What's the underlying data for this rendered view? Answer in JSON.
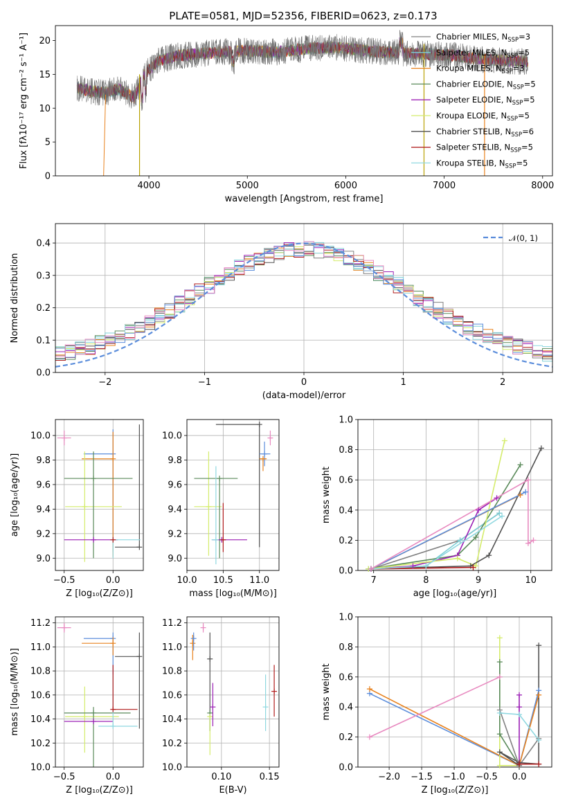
{
  "colors": {
    "Chabrier MILES": "#808080",
    "Salpeter MILES": "#7dcfd6",
    "Kroupa MILES": "#e8821e",
    "Chabrier ELODIE": "#5a8a5a",
    "Salpeter ELODIE": "#9b1fb5",
    "Kroupa ELODIE": "#d4ec6a",
    "Chabrier STELIB": "#505050",
    "Salpeter STELIB": "#b01a1a",
    "Kroupa STELIB": "#8fd8e0",
    "extra_blue": "#5b8ddb",
    "extra_pink": "#e88ac0",
    "normal_curve": "#5b8ddb",
    "grid": "#b0b0b0"
  },
  "figure_title": "PLATE=0581, MJD=52356, FIBERID=0623, z=0.173",
  "chart_data": [
    {
      "id": "spectrum",
      "type": "line",
      "xlabel": "wavelength [Angstrom, rest frame]",
      "ylabel": "Flux [fλ10⁻¹⁷ erg cm⁻² s⁻¹ A⁻¹]",
      "xlim": [
        3050,
        8100
      ],
      "ylim": [
        0,
        22.2
      ],
      "xticks": [
        4000,
        5000,
        6000,
        7000,
        8000
      ],
      "yticks": [
        0,
        5,
        10,
        15,
        20
      ],
      "grid": false,
      "legend_position": "right",
      "continuum_x": [
        3270,
        3400,
        3550,
        3700,
        3850,
        3950,
        4100,
        4300,
        4500,
        4700,
        5000,
        5300,
        5600,
        5900,
        6200,
        6500,
        6800,
        7100,
        7400,
        7700,
        7850
      ],
      "continuum_y": [
        13.0,
        12.5,
        12.3,
        12.8,
        11.5,
        15.0,
        17.0,
        17.8,
        18.0,
        18.3,
        18.5,
        18.3,
        18.8,
        19.0,
        18.5,
        18.2,
        18.0,
        17.8,
        17.2,
        17.0,
        16.8
      ],
      "series": [
        {
          "name": "Chabrier MILES",
          "label_suffix": "=3"
        },
        {
          "name": "Salpeter MILES",
          "label_suffix": "=5"
        },
        {
          "name": "Kroupa MILES",
          "label_suffix": "=3"
        },
        {
          "name": "Chabrier ELODIE",
          "label_suffix": "=5"
        },
        {
          "name": "Salpeter ELODIE",
          "label_suffix": "=5"
        },
        {
          "name": "Kroupa ELODIE",
          "label_suffix": "=5"
        },
        {
          "name": "Chabrier STELIB",
          "label_suffix": "=6"
        },
        {
          "name": "Salpeter STELIB",
          "label_suffix": "=5"
        },
        {
          "name": "Kroupa STELIB",
          "label_suffix": "=5"
        }
      ],
      "legend_subscript": "SSP",
      "legend_prefix": "N"
    },
    {
      "id": "residual_hist",
      "type": "bar",
      "xlabel": "(data-model)/error",
      "ylabel": "Normed distribution",
      "xlim": [
        -2.5,
        2.5
      ],
      "ylim": [
        0,
        0.46
      ],
      "xticks": [
        -2,
        -1,
        0,
        1,
        2
      ],
      "xticklabels": [
        "−2",
        "−1",
        "0",
        "1",
        "2"
      ],
      "yticks": [
        0.0,
        0.1,
        0.2,
        0.3,
        0.4
      ],
      "yticklabels": [
        "0.0",
        "0.1",
        "0.2",
        "0.3",
        "0.4"
      ],
      "grid": true,
      "bin_width": 0.1,
      "curve_label": "𝒩(0, 1)",
      "legend_position": "top-right"
    },
    {
      "id": "age_vs_Z",
      "type": "scatter",
      "xlabel": "Z [log₁₀(Z/Z⊙)]",
      "ylabel": "age  [log₁₀(age/yr)]",
      "xlim": [
        -0.59,
        0.31
      ],
      "ylim": [
        8.9,
        10.13
      ],
      "xticks": [
        -0.5,
        0.0
      ],
      "xticklabels": [
        "−0.5",
        "0.0"
      ],
      "yticks": [
        9.0,
        9.2,
        9.4,
        9.6,
        9.8,
        10.0
      ],
      "yticklabels": [
        "9.0",
        "9.2",
        "9.4",
        "9.6",
        "9.8",
        "10.0"
      ],
      "grid": true
    },
    {
      "id": "age_vs_mass",
      "type": "scatter",
      "xlabel": "mass [log₁₀(M/M⊙)]",
      "xlim": [
        10.0,
        11.27
      ],
      "ylim": [
        8.9,
        10.13
      ],
      "xticks": [
        10.0,
        10.5,
        11.0
      ],
      "xticklabels": [
        "10.0",
        "10.5",
        "11.0"
      ],
      "yticks": [
        9.0,
        9.2,
        9.4,
        9.6,
        9.8,
        10.0
      ],
      "yticklabels": [
        "9.0",
        "9.2",
        "9.4",
        "9.6",
        "9.8",
        "10.0"
      ],
      "grid": true
    },
    {
      "id": "massweight_vs_age",
      "type": "line",
      "xlabel": "age  [log₁₀(age/yr)]",
      "ylabel": "mass weight",
      "xlim": [
        6.7,
        10.4
      ],
      "ylim": [
        0,
        1.0
      ],
      "xticks": [
        7,
        8,
        9,
        10
      ],
      "yticks": [
        0.0,
        0.2,
        0.4,
        0.6,
        0.8,
        1.0
      ],
      "yticklabels": [
        "0.0",
        "0.2",
        "0.4",
        "0.6",
        "0.8",
        "1.0"
      ],
      "grid": true,
      "series": [
        {
          "name": "Chabrier MILES",
          "x": [
            6.95,
            8.65,
            9.4
          ],
          "y": [
            0.01,
            0.2,
            0.38
          ]
        },
        {
          "name": "Salpeter MILES",
          "x": [
            6.95,
            8.0,
            8.65,
            9.4
          ],
          "y": [
            0.01,
            0.03,
            0.2,
            0.38
          ]
        },
        {
          "name": "Kroupa MILES",
          "x": [
            6.95,
            9.8
          ],
          "y": [
            0.01,
            0.5
          ]
        },
        {
          "name": "Chabrier ELODIE",
          "x": [
            6.9,
            8.6,
            8.95,
            9.8
          ],
          "y": [
            0.01,
            0.1,
            0.22,
            0.7
          ]
        },
        {
          "name": "Salpeter ELODIE",
          "x": [
            6.95,
            7.75,
            8.6,
            9.0,
            9.35
          ],
          "y": [
            0.01,
            0.03,
            0.1,
            0.4,
            0.48
          ]
        },
        {
          "name": "Kroupa ELODIE",
          "x": [
            6.9,
            8.6,
            8.95,
            9.5
          ],
          "y": [
            0.01,
            0.08,
            0.03,
            0.86
          ]
        },
        {
          "name": "Chabrier STELIB",
          "x": [
            6.95,
            8.85,
            9.2,
            10.2
          ],
          "y": [
            0.01,
            0.03,
            0.1,
            0.81
          ]
        },
        {
          "name": "Salpeter STELIB",
          "x": [
            6.95,
            8.9
          ],
          "y": [
            0.01,
            0.02
          ]
        },
        {
          "name": "Kroupa STELIB",
          "x": [
            6.95,
            8.0,
            9.45
          ],
          "y": [
            0.01,
            0.03,
            0.36
          ]
        },
        {
          "name": "extra_blue",
          "x": [
            6.95,
            9.9
          ],
          "y": [
            0.01,
            0.52
          ]
        },
        {
          "name": "extra_pink",
          "x": [
            6.95,
            9.95,
            9.95,
            10.05
          ],
          "y": [
            0.01,
            0.6,
            0.18,
            0.2
          ]
        }
      ]
    },
    {
      "id": "mass_vs_Z",
      "type": "scatter",
      "xlabel": "Z [log₁₀(Z/Z⊙)]",
      "ylabel": "mass [log₁₀(M/M⊙)]",
      "xlim": [
        -0.59,
        0.31
      ],
      "ylim": [
        10.0,
        11.25
      ],
      "xticks": [
        -0.5,
        0.0
      ],
      "xticklabels": [
        "−0.5",
        "0.0"
      ],
      "yticks": [
        10.0,
        10.2,
        10.4,
        10.6,
        10.8,
        11.0,
        11.2
      ],
      "yticklabels": [
        "10.0",
        "10.2",
        "10.4",
        "10.6",
        "10.8",
        "11.0",
        "11.2"
      ],
      "grid": true
    },
    {
      "id": "mass_vs_EBV",
      "type": "scatter",
      "xlabel": "E(B-V)",
      "xlim": [
        0.064,
        0.16
      ],
      "ylim": [
        10.0,
        11.25
      ],
      "xticks": [
        0.1,
        0.15
      ],
      "xticklabels": [
        "0.10",
        "0.15"
      ],
      "yticks": [
        10.0,
        10.2,
        10.4,
        10.6,
        10.8,
        11.0,
        11.2
      ],
      "yticklabels": [
        "10.0",
        "10.2",
        "10.4",
        "10.6",
        "10.8",
        "11.0",
        "11.2"
      ],
      "grid": true
    },
    {
      "id": "massweight_vs_Z",
      "type": "line",
      "xlabel": "Z [log₁₀(Z/Z⊙)]",
      "ylabel": "mass weight",
      "xlim": [
        -2.48,
        0.5
      ],
      "ylim": [
        0,
        1.0
      ],
      "xticks": [
        -2.0,
        -1.5,
        -1.0,
        -0.5,
        0.0
      ],
      "xticklabels": [
        "−2.0",
        "−1.5",
        "−1.0",
        "−0.5",
        "0.0"
      ],
      "yticks": [
        0.0,
        0.2,
        0.4,
        0.6,
        0.8,
        1.0
      ],
      "yticklabels": [
        "0.0",
        "0.2",
        "0.4",
        "0.6",
        "0.8",
        "1.0"
      ],
      "grid": true,
      "series": [
        {
          "name": "extra_blue",
          "x": [
            -2.3,
            0.0,
            0.3
          ],
          "y": [
            0.49,
            0.01,
            0.51
          ]
        },
        {
          "name": "Kroupa MILES",
          "x": [
            -2.3,
            0.0,
            0.3
          ],
          "y": [
            0.52,
            0.01,
            0.48
          ]
        },
        {
          "name": "extra_pink",
          "x": [
            -2.3,
            -0.3
          ],
          "y": [
            0.2,
            0.6
          ]
        },
        {
          "name": "Kroupa ELODIE",
          "x": [
            -0.3,
            -0.3,
            0.0
          ],
          "y": [
            0.86,
            0.01,
            0.01
          ]
        },
        {
          "name": "Chabrier ELODIE",
          "x": [
            -0.3,
            -0.3,
            0.0
          ],
          "y": [
            0.7,
            0.22,
            0.01
          ]
        },
        {
          "name": "Salpeter ELODIE",
          "x": [
            0.0,
            0.0,
            0.0
          ],
          "y": [
            0.48,
            0.4,
            0.03
          ]
        },
        {
          "name": "Chabrier STELIB",
          "x": [
            0.3,
            0.3,
            0.0,
            -0.3,
            0.0
          ],
          "y": [
            0.81,
            0.02,
            0.03,
            0.1,
            0.01
          ]
        },
        {
          "name": "Chabrier MILES",
          "x": [
            -0.3,
            0.0,
            0.3
          ],
          "y": [
            0.38,
            0.01,
            0.19
          ]
        },
        {
          "name": "Kroupa STELIB",
          "x": [
            -0.3,
            0.0,
            0.3
          ],
          "y": [
            0.36,
            0.35,
            0.18
          ]
        },
        {
          "name": "Salpeter STELIB",
          "x": [
            0.0,
            0.3
          ],
          "y": [
            0.02,
            0.02
          ]
        }
      ]
    }
  ],
  "error_bars": {
    "age_Z": [
      {
        "c": "extra_pink",
        "x": -0.5,
        "y": 9.98,
        "xe": [
          0.07,
          0.07
        ],
        "ye": [
          0.06,
          0.06
        ]
      },
      {
        "c": "Chabrier STELIB",
        "x": 0.27,
        "y": 9.09,
        "xe": [
          0.25,
          0.0
        ],
        "ye": [
          0.0,
          1.0
        ]
      },
      {
        "c": "extra_blue",
        "x": 0.0,
        "y": 9.85,
        "xe": [
          0.3,
          0.0
        ],
        "ye": [
          0.8,
          0.2
        ]
      },
      {
        "c": "Kroupa MILES",
        "x": -0.0,
        "y": 9.81,
        "xe": [
          0.32,
          0.0
        ],
        "ye": [
          0.8,
          0.22
        ]
      },
      {
        "c": "Kroupa ELODIE",
        "x": -0.29,
        "y": 9.42,
        "xe": [
          0.2,
          0.38
        ],
        "ye": [
          0.45,
          0.45
        ]
      },
      {
        "c": "Chabrier ELODIE",
        "x": -0.2,
        "y": 9.65,
        "xe": [
          0.3,
          0.4
        ],
        "ye": [
          0.65,
          0.22
        ]
      },
      {
        "c": "Salpeter ELODIE",
        "x": -0.2,
        "y": 9.15,
        "xe": [
          0.3,
          0.25
        ],
        "ye": [
          0.0,
          0.0
        ]
      },
      {
        "c": "Kroupa STELIB",
        "x": 0.0,
        "y": 9.15,
        "xe": [
          0.0,
          0.28
        ],
        "ye": [
          0.15,
          0.0
        ]
      },
      {
        "c": "Salpeter STELIB",
        "x": 0.0,
        "y": 9.15,
        "xe": [
          0.0,
          0.0
        ],
        "ye": [
          0.0,
          0.0
        ]
      }
    ],
    "age_mass": [
      {
        "c": "extra_pink",
        "x": 11.15,
        "y": 9.98,
        "xe": [
          0.03,
          0.03
        ],
        "ye": [
          0.06,
          0.06
        ]
      },
      {
        "c": "Chabrier STELIB",
        "x": 11.0,
        "y": 10.09,
        "xe": [
          0.6,
          0.0
        ],
        "ye": [
          1.0,
          0.0
        ]
      },
      {
        "c": "extra_blue",
        "x": 11.07,
        "y": 9.85,
        "xe": [
          0.07,
          0.08
        ],
        "ye": [
          0.1,
          0.1
        ]
      },
      {
        "c": "Kroupa MILES",
        "x": 11.05,
        "y": 9.81,
        "xe": [
          0.05,
          0.05
        ],
        "ye": [
          0.1,
          0.0
        ]
      },
      {
        "c": "Kroupa ELODIE",
        "x": 10.3,
        "y": 9.42,
        "xe": [
          0.2,
          0.18
        ],
        "ye": [
          0.4,
          0.45
        ]
      },
      {
        "c": "Chabrier ELODIE",
        "x": 10.45,
        "y": 9.65,
        "xe": [
          0.35,
          0.25
        ],
        "ye": [
          0.65,
          0.0
        ]
      },
      {
        "c": "Salpeter ELODIE",
        "x": 10.48,
        "y": 9.15,
        "xe": [
          0.13,
          0.35
        ],
        "ye": [
          0.0,
          0.0
        ]
      },
      {
        "c": "Kroupa STELIB",
        "x": 10.4,
        "y": 9.15,
        "xe": [
          0.06,
          0.0
        ],
        "ye": [
          0.2,
          0.6
        ]
      },
      {
        "c": "Salpeter STELIB",
        "x": 10.5,
        "y": 9.15,
        "xe": [
          0.0,
          0.0
        ],
        "ye": [
          0.1,
          0.3
        ]
      }
    ],
    "mass_Z": [
      {
        "c": "extra_pink",
        "x": -0.5,
        "y": 11.16,
        "xe": [
          0.07,
          0.07
        ],
        "ye": [
          0.04,
          0.04
        ]
      },
      {
        "c": "Chabrier STELIB",
        "x": 0.27,
        "y": 10.92,
        "xe": [
          0.25,
          0.0
        ],
        "ye": [
          0.6,
          0.2
        ]
      },
      {
        "c": "extra_blue",
        "x": 0.0,
        "y": 11.07,
        "xe": [
          0.3,
          0.0
        ],
        "ye": [
          0.3,
          0.05
        ]
      },
      {
        "c": "Kroupa MILES",
        "x": 0.0,
        "y": 11.03,
        "xe": [
          0.32,
          0.0
        ],
        "ye": [
          0.1,
          0.05
        ]
      },
      {
        "c": "Kroupa ELODIE",
        "x": -0.29,
        "y": 10.42,
        "xe": [
          0.2,
          0.35
        ],
        "ye": [
          0.3,
          0.25
        ]
      },
      {
        "c": "Chabrier ELODIE",
        "x": -0.2,
        "y": 10.45,
        "xe": [
          0.3,
          0.38
        ],
        "ye": [
          0.57,
          0.05
        ]
      },
      {
        "c": "Salpeter ELODIE",
        "x": -0.2,
        "y": 10.38,
        "xe": [
          0.3,
          0.2
        ],
        "ye": [
          0.0,
          0.0
        ]
      },
      {
        "c": "Kroupa STELIB",
        "x": 0.0,
        "y": 10.34,
        "xe": [
          0.15,
          0.25
        ],
        "ye": [
          0.0,
          0.43
        ]
      },
      {
        "c": "Salpeter STELIB",
        "x": 0.0,
        "y": 10.48,
        "xe": [
          0.0,
          0.25
        ],
        "ye": [
          0.0,
          0.37
        ]
      }
    ],
    "mass_EBV": [
      {
        "c": "extra_pink",
        "x": 0.081,
        "y": 11.16,
        "xe": [
          0,
          0
        ],
        "ye": [
          0.04,
          0.04
        ]
      },
      {
        "c": "Kroupa MILES",
        "x": 0.07,
        "y": 11.03,
        "xe": [
          0,
          0
        ],
        "ye": [
          0.14,
          0.07
        ]
      },
      {
        "c": "extra_blue",
        "x": 0.071,
        "y": 11.07,
        "xe": [
          0,
          0
        ],
        "ye": [
          0.1,
          0.05
        ]
      },
      {
        "c": "Chabrier STELIB",
        "x": 0.088,
        "y": 10.9,
        "xe": [
          0,
          0
        ],
        "ye": [
          0.6,
          0.22
        ]
      },
      {
        "c": "Chabrier ELODIE",
        "x": 0.088,
        "y": 10.45,
        "xe": [
          0,
          0
        ],
        "ye": [
          0.15,
          0.0
        ]
      },
      {
        "c": "Kroupa ELODIE",
        "x": 0.088,
        "y": 10.42,
        "xe": [
          0,
          0
        ],
        "ye": [
          0.32,
          0.0
        ]
      },
      {
        "c": "Salpeter ELODIE",
        "x": 0.091,
        "y": 10.5,
        "xe": [
          0,
          0
        ],
        "ye": [
          0.16,
          0.2
        ]
      },
      {
        "c": "Kroupa STELIB",
        "x": 0.146,
        "y": 10.5,
        "xe": [
          0,
          0
        ],
        "ye": [
          0.2,
          0.27
        ]
      },
      {
        "c": "Salpeter STELIB",
        "x": 0.155,
        "y": 10.63,
        "xe": [
          0,
          0
        ],
        "ye": [
          0.21,
          0.22
        ]
      }
    ]
  }
}
